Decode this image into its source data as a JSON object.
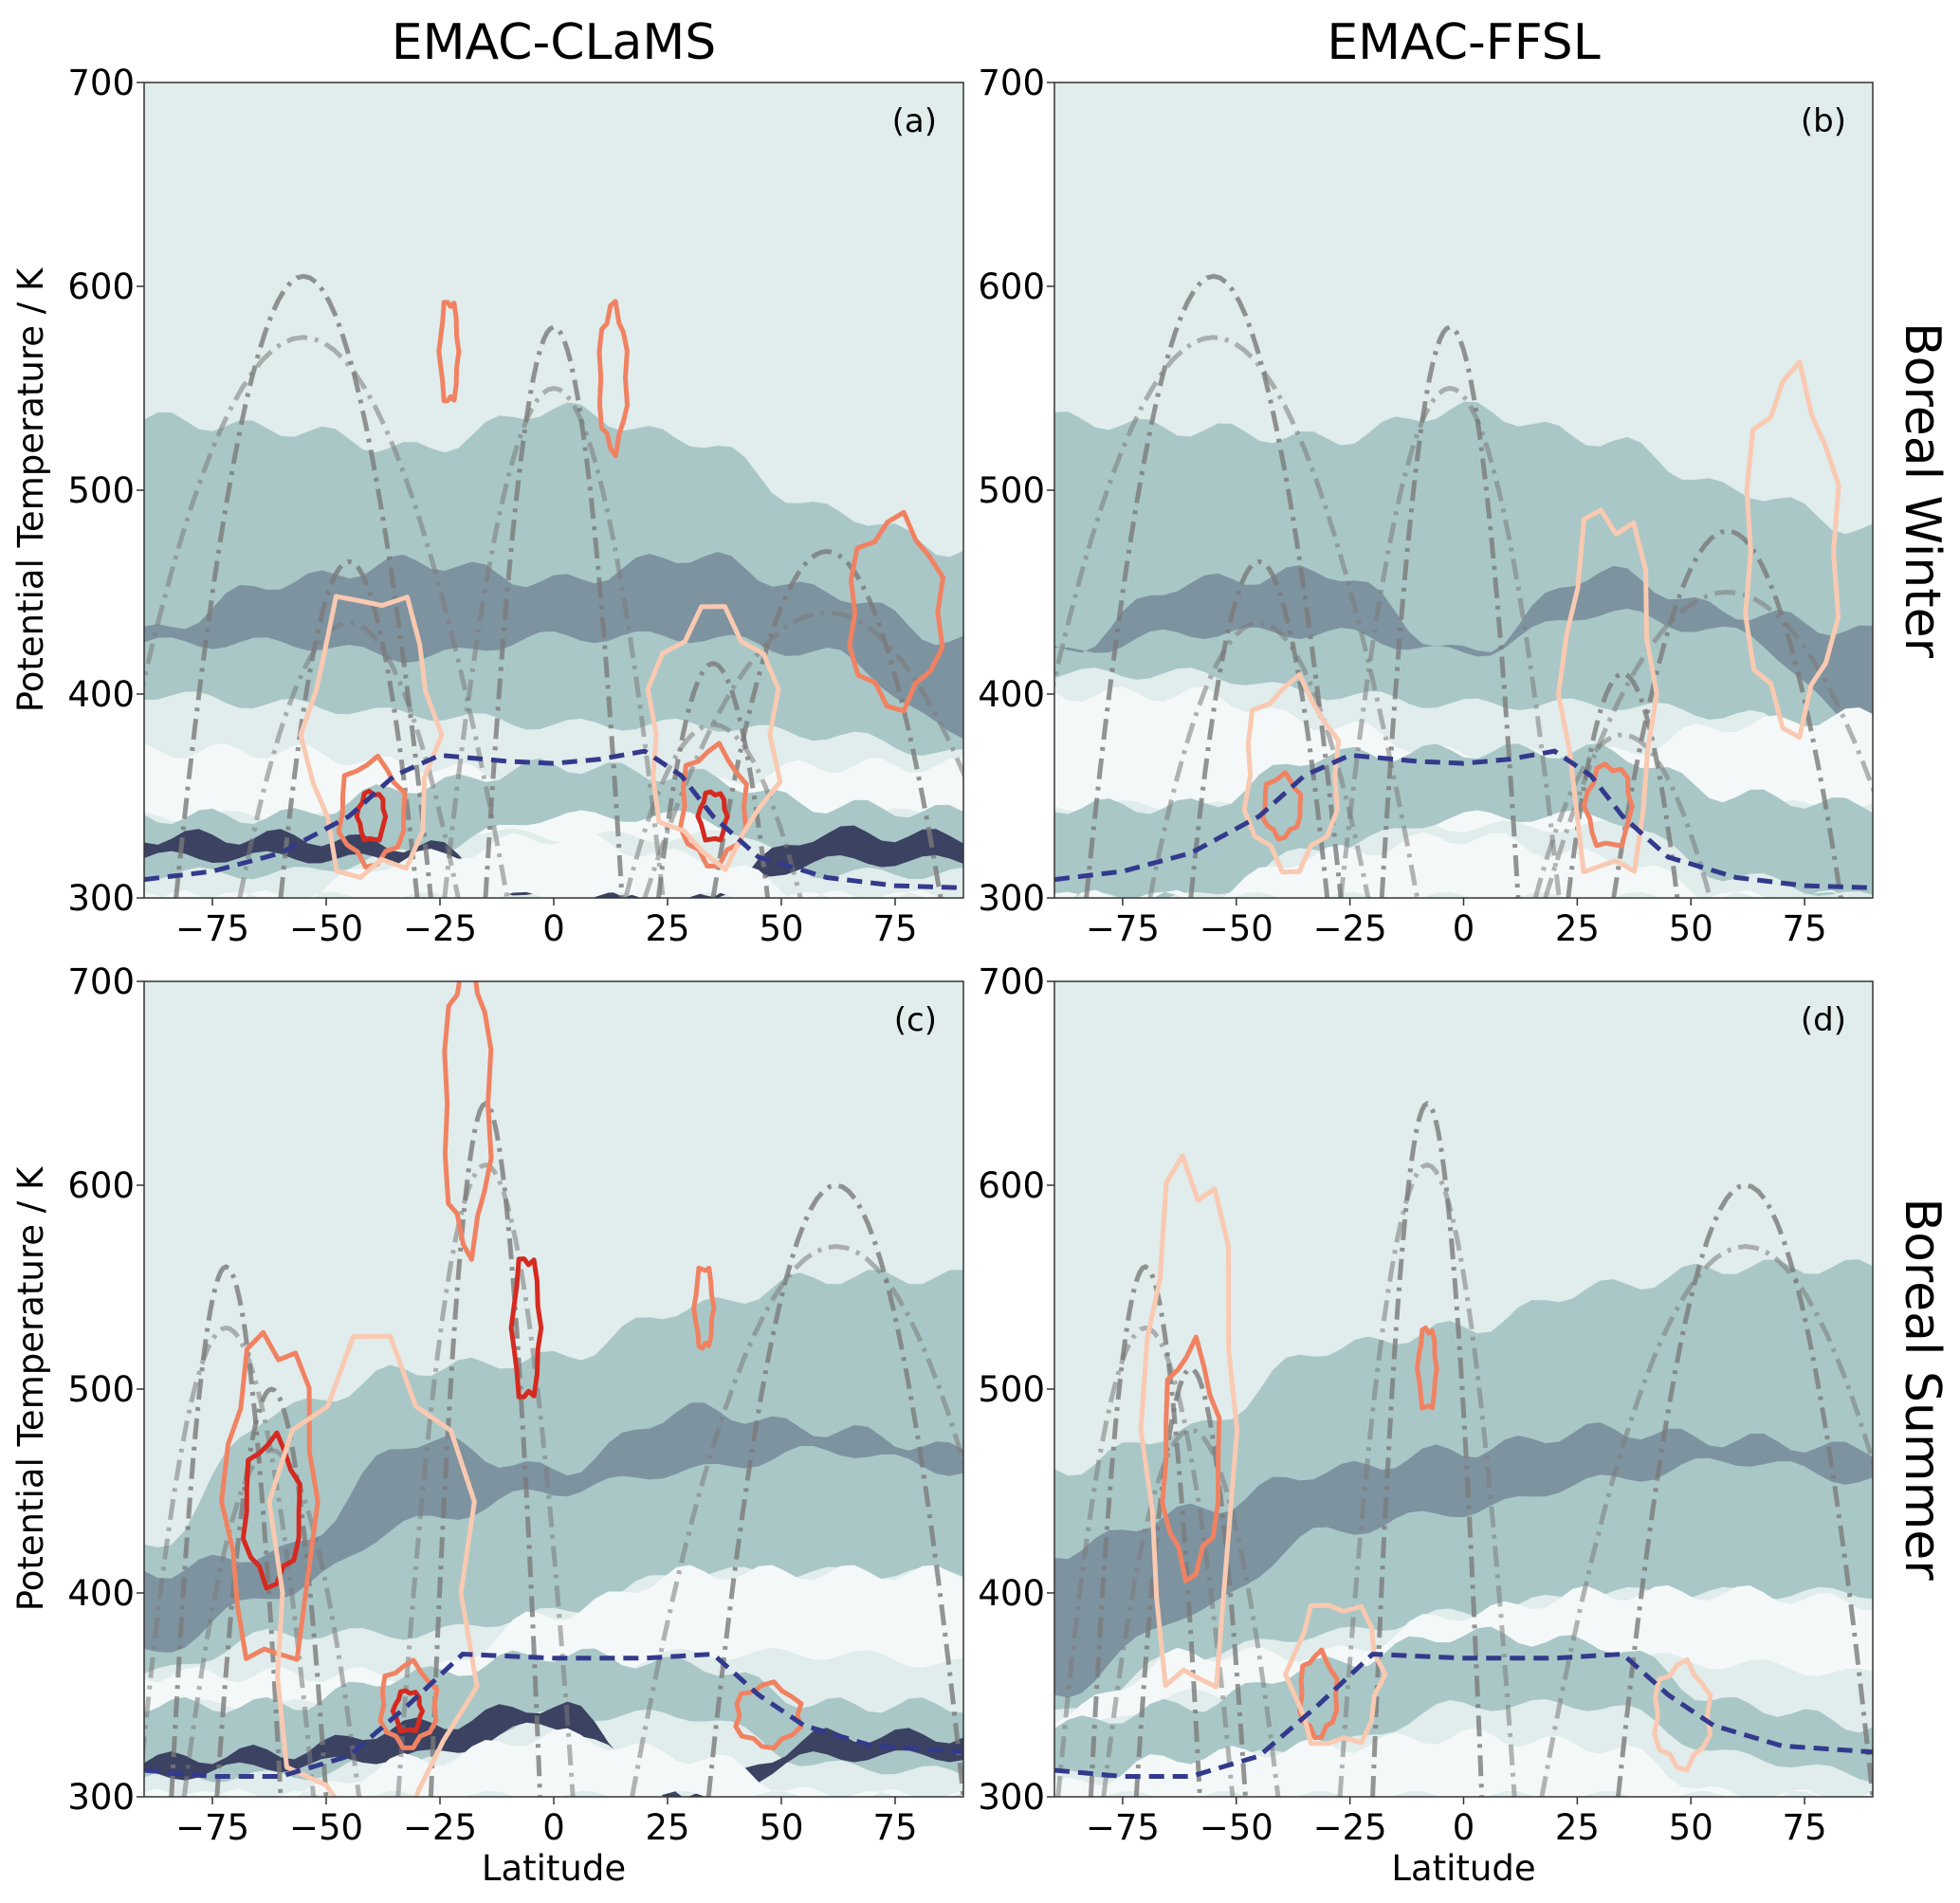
{
  "column_titles": [
    "EMAC-CLaMS",
    "EMAC-FFSL"
  ],
  "row_labels": [
    "Boreal Winter",
    "Boreal Summer"
  ],
  "colors": {
    "background": "#e1ecec",
    "light_band": "#f4f8f8",
    "mid_band": "#a9c7c7",
    "dark_band": "#7e93a0",
    "darkest_band": "#3c4262",
    "tropopause": "#333a8c",
    "red_light": "#f9c9b1",
    "red_mid": "#f08262",
    "red_dark": "#d52a20",
    "grey_dashdot": "#7a7a7a",
    "white_line": "#fff5ee"
  },
  "chart_data": [
    {
      "type": "contour",
      "panel_label": "(a)",
      "column": 0,
      "row": 0,
      "xlabel": "",
      "ylabel": "Potential Temperature / K",
      "xlim": [
        -90,
        90
      ],
      "ylim": [
        300,
        700
      ],
      "xticks": [
        -75,
        -50,
        -25,
        0,
        25,
        50,
        75
      ],
      "yticks": [
        300,
        400,
        500,
        600,
        700
      ],
      "band_lats": [
        -90,
        -60,
        -30,
        0,
        30,
        60,
        90
      ],
      "bands": [
        {
          "level": "mid_band",
          "top": [
            535,
            530,
            520,
            540,
            525,
            490,
            470
          ],
          "bottom": [
            400,
            395,
            390,
            385,
            385,
            380,
            370
          ]
        },
        {
          "level": "dark_band",
          "top": [
            430,
            455,
            465,
            455,
            468,
            450,
            425
          ],
          "bottom": [
            425,
            425,
            418,
            428,
            428,
            420,
            380
          ]
        },
        {
          "level": "light_band",
          "top": [
            372,
            372,
            365,
            355,
            355,
            365,
            365
          ],
          "bottom": [
            340,
            340,
            336,
            330,
            330,
            340,
            342
          ]
        },
        {
          "level": "mid_band",
          "top": [
            340,
            340,
            355,
            365,
            360,
            345,
            342
          ],
          "bottom": [
            312,
            312,
            322,
            340,
            340,
            312,
            312
          ]
        },
        {
          "level": "darkest_band",
          "top": [
            330,
            330,
            326,
            300,
            300,
            332,
            330
          ],
          "bottom": [
            320,
            320,
            318,
            300,
            300,
            318,
            318
          ]
        },
        {
          "level": "light_band",
          "top": [
            300,
            300,
            320,
            330,
            320,
            300,
            300
          ],
          "bottom": [
            300,
            300,
            300,
            300,
            300,
            300,
            300
          ]
        }
      ],
      "tropopause": {
        "lat": [
          -90,
          -75,
          -60,
          -45,
          -35,
          -25,
          -10,
          0,
          10,
          20,
          28,
          35,
          45,
          60,
          75,
          90
        ],
        "theta": [
          309,
          313,
          322,
          340,
          360,
          370,
          367,
          366,
          368,
          372,
          360,
          340,
          320,
          310,
          306,
          305
        ]
      },
      "red_contours": [
        {
          "level": "red_mid",
          "center": [
            -40,
            342
          ],
          "radius": [
            7,
            25
          ]
        },
        {
          "level": "red_dark",
          "center": [
            -40,
            340
          ],
          "radius": [
            3,
            12
          ]
        },
        {
          "level": "red_mid",
          "center": [
            35,
            345
          ],
          "radius": [
            7,
            28
          ]
        },
        {
          "level": "red_dark",
          "center": [
            35,
            340
          ],
          "radius": [
            3,
            12
          ]
        },
        {
          "level": "red_mid",
          "center": [
            75,
            440
          ],
          "radius": [
            10,
            45
          ]
        },
        {
          "level": "red_mid",
          "center": [
            -23,
            568
          ],
          "radius": [
            2,
            25
          ]
        },
        {
          "level": "red_mid",
          "center": [
            13,
            555
          ],
          "radius": [
            3,
            35
          ]
        },
        {
          "level": "red_light",
          "center": [
            -40,
            380
          ],
          "radius": [
            14,
            70
          ]
        },
        {
          "level": "red_light",
          "center": [
            35,
            380
          ],
          "radius": [
            14,
            60
          ]
        }
      ],
      "dashdot_peaks": [
        [
          -55,
          605,
          28
        ],
        [
          -45,
          465,
          15
        ],
        [
          0,
          580,
          15
        ],
        [
          35,
          415,
          12
        ],
        [
          60,
          470,
          25
        ]
      ]
    },
    {
      "type": "contour",
      "panel_label": "(b)",
      "column": 1,
      "row": 0,
      "xlabel": "",
      "ylabel": "",
      "xlim": [
        -90,
        90
      ],
      "ylim": [
        300,
        700
      ],
      "xticks": [
        -75,
        -50,
        -25,
        0,
        25,
        50,
        75
      ],
      "yticks": [
        300,
        400,
        500,
        600,
        700
      ],
      "band_lats": [
        -90,
        -60,
        -30,
        0,
        30,
        60,
        90
      ],
      "bands": [
        {
          "level": "mid_band",
          "top": [
            535,
            530,
            525,
            540,
            525,
            500,
            480
          ],
          "bottom": [
            410,
            410,
            400,
            395,
            395,
            390,
            370
          ]
        },
        {
          "level": "dark_band",
          "top": [
            420,
            455,
            460,
            420,
            460,
            440,
            430
          ],
          "bottom": [
            420,
            430,
            430,
            420,
            440,
            430,
            380
          ]
        },
        {
          "level": "light_band",
          "top": [
            400,
            400,
            385,
            370,
            370,
            385,
            390
          ],
          "bottom": [
            345,
            345,
            340,
            335,
            335,
            345,
            345
          ]
        },
        {
          "level": "mid_band",
          "top": [
            345,
            345,
            370,
            372,
            372,
            350,
            345
          ],
          "bottom": [
            300,
            300,
            325,
            340,
            340,
            310,
            300
          ]
        },
        {
          "level": "light_band",
          "top": [
            300,
            300,
            322,
            330,
            320,
            300,
            300
          ],
          "bottom": [
            300,
            300,
            300,
            300,
            300,
            300,
            300
          ]
        }
      ],
      "tropopause": {
        "lat": [
          -90,
          -75,
          -60,
          -45,
          -35,
          -25,
          -10,
          0,
          10,
          20,
          28,
          35,
          45,
          60,
          75,
          90
        ],
        "theta": [
          309,
          313,
          322,
          340,
          360,
          370,
          367,
          366,
          368,
          372,
          360,
          340,
          320,
          310,
          306,
          305
        ]
      },
      "red_contours": [
        {
          "level": "red_mid",
          "center": [
            -40,
            345
          ],
          "radius": [
            4,
            15
          ]
        },
        {
          "level": "red_mid",
          "center": [
            32,
            345
          ],
          "radius": [
            5,
            20
          ]
        },
        {
          "level": "red_light",
          "center": [
            -38,
            360
          ],
          "radius": [
            10,
            45
          ]
        },
        {
          "level": "red_light",
          "center": [
            32,
            400
          ],
          "radius": [
            10,
            90
          ]
        },
        {
          "level": "red_light",
          "center": [
            72,
            470
          ],
          "radius": [
            10,
            85
          ]
        }
      ],
      "dashdot_peaks": [
        [
          -55,
          605,
          28
        ],
        [
          -45,
          465,
          15
        ],
        [
          -3,
          580,
          15
        ],
        [
          35,
          410,
          12
        ],
        [
          58,
          480,
          25
        ]
      ]
    },
    {
      "type": "contour",
      "panel_label": "(c)",
      "column": 0,
      "row": 1,
      "xlabel": "Latitude",
      "ylabel": "Potential Temperature / K",
      "xlim": [
        -90,
        90
      ],
      "ylim": [
        300,
        700
      ],
      "xticks": [
        -75,
        -50,
        -25,
        0,
        25,
        50,
        75
      ],
      "yticks": [
        300,
        400,
        500,
        600,
        700
      ],
      "band_lats": [
        -90,
        -60,
        -30,
        0,
        30,
        60,
        90
      ],
      "bands": [
        {
          "level": "mid_band",
          "top": [
            420,
            490,
            510,
            515,
            540,
            555,
            555
          ],
          "bottom": [
            360,
            380,
            380,
            390,
            410,
            410,
            410
          ]
        },
        {
          "level": "dark_band",
          "top": [
            410,
            420,
            475,
            460,
            490,
            480,
            470
          ],
          "bottom": [
            370,
            400,
            435,
            450,
            460,
            470,
            460
          ]
        },
        {
          "level": "light_band",
          "top": [
            360,
            360,
            360,
            390,
            410,
            410,
            410
          ],
          "bottom": [
            345,
            345,
            345,
            360,
            370,
            370,
            365
          ]
        },
        {
          "level": "mid_band",
          "top": [
            345,
            345,
            360,
            370,
            365,
            345,
            345
          ],
          "bottom": [
            310,
            310,
            320,
            340,
            340,
            315,
            312
          ]
        },
        {
          "level": "darkest_band",
          "top": [
            318,
            322,
            335,
            345,
            300,
            330,
            330
          ],
          "bottom": [
            310,
            315,
            320,
            335,
            300,
            320,
            320
          ]
        },
        {
          "level": "light_band",
          "top": [
            300,
            300,
            318,
            330,
            320,
            300,
            300
          ],
          "bottom": [
            300,
            300,
            300,
            300,
            300,
            300,
            300
          ]
        }
      ],
      "tropopause": {
        "lat": [
          -90,
          -75,
          -60,
          -45,
          -32,
          -20,
          0,
          20,
          35,
          45,
          55,
          70,
          90
        ],
        "theta": [
          313,
          310,
          310,
          320,
          345,
          370,
          368,
          368,
          370,
          350,
          335,
          325,
          322
        ]
      },
      "red_contours": [
        {
          "level": "red_dark",
          "center": [
            -62,
            440
          ],
          "radius": [
            6,
            35
          ]
        },
        {
          "level": "red_mid",
          "center": [
            -62,
            445
          ],
          "radius": [
            10,
            80
          ]
        },
        {
          "level": "red_mid",
          "center": [
            -32,
            345
          ],
          "radius": [
            6,
            20
          ]
        },
        {
          "level": "red_dark",
          "center": [
            -32,
            342
          ],
          "radius": [
            3,
            10
          ]
        },
        {
          "level": "red_mid",
          "center": [
            47,
            340
          ],
          "radius": [
            7,
            15
          ]
        },
        {
          "level": "red_dark",
          "center": [
            -6,
            530
          ],
          "radius": [
            3,
            35
          ]
        },
        {
          "level": "red_mid",
          "center": [
            -19,
            640
          ],
          "radius": [
            5,
            70
          ]
        },
        {
          "level": "red_mid",
          "center": [
            33,
            540
          ],
          "radius": [
            2,
            20
          ]
        },
        {
          "level": "red_light",
          "center": [
            -40,
            400
          ],
          "radius": [
            22,
            120
          ]
        }
      ],
      "dashdot_peaks": [
        [
          -62,
          500,
          12
        ],
        [
          -72,
          560,
          12
        ],
        [
          -15,
          640,
          12
        ],
        [
          62,
          600,
          28
        ]
      ]
    },
    {
      "type": "contour",
      "panel_label": "(d)",
      "column": 1,
      "row": 1,
      "xlabel": "Latitude",
      "ylabel": "",
      "xlim": [
        -90,
        90
      ],
      "ylim": [
        300,
        700
      ],
      "xticks": [
        -75,
        -50,
        -25,
        0,
        25,
        50,
        75
      ],
      "yticks": [
        300,
        400,
        500,
        600,
        700
      ],
      "band_lats": [
        -90,
        -60,
        -30,
        0,
        30,
        60,
        90
      ],
      "bands": [
        {
          "level": "mid_band",
          "top": [
            460,
            480,
            520,
            530,
            550,
            560,
            560
          ],
          "bottom": [
            340,
            370,
            380,
            390,
            400,
            400,
            400
          ]
        },
        {
          "level": "dark_band",
          "top": [
            420,
            440,
            460,
            470,
            480,
            475,
            470
          ],
          "bottom": [
            350,
            390,
            430,
            440,
            455,
            465,
            455
          ]
        },
        {
          "level": "light_band",
          "top": [
            340,
            370,
            370,
            390,
            400,
            400,
            395
          ],
          "bottom": [
            330,
            350,
            345,
            360,
            370,
            365,
            360
          ]
        },
        {
          "level": "mid_band",
          "top": [
            335,
            345,
            365,
            380,
            375,
            345,
            335
          ],
          "bottom": [
            310,
            315,
            325,
            345,
            345,
            320,
            310
          ]
        },
        {
          "level": "light_band",
          "top": [
            305,
            320,
            325,
            330,
            325,
            300,
            300
          ],
          "bottom": [
            300,
            300,
            300,
            300,
            300,
            300,
            300
          ]
        }
      ],
      "tropopause": {
        "lat": [
          -90,
          -75,
          -60,
          -45,
          -32,
          -20,
          0,
          20,
          35,
          45,
          55,
          70,
          90
        ],
        "theta": [
          313,
          310,
          310,
          320,
          345,
          370,
          368,
          368,
          370,
          350,
          335,
          325,
          322
        ]
      },
      "red_contours": [
        {
          "level": "red_mid",
          "center": [
            -60,
            465
          ],
          "radius": [
            6,
            55
          ]
        },
        {
          "level": "red_light",
          "center": [
            -60,
            480
          ],
          "radius": [
            10,
            130
          ]
        },
        {
          "level": "red_mid",
          "center": [
            -32,
            350
          ],
          "radius": [
            4,
            20
          ]
        },
        {
          "level": "red_mid",
          "center": [
            -8,
            510
          ],
          "radius": [
            2,
            20
          ]
        },
        {
          "level": "red_light",
          "center": [
            48,
            340
          ],
          "radius": [
            6,
            25
          ]
        },
        {
          "level": "red_light",
          "center": [
            -28,
            360
          ],
          "radius": [
            10,
            35
          ]
        }
      ],
      "dashdot_peaks": [
        [
          -60,
          510,
          12
        ],
        [
          -70,
          560,
          12
        ],
        [
          -8,
          640,
          12
        ],
        [
          62,
          600,
          28
        ]
      ]
    }
  ]
}
